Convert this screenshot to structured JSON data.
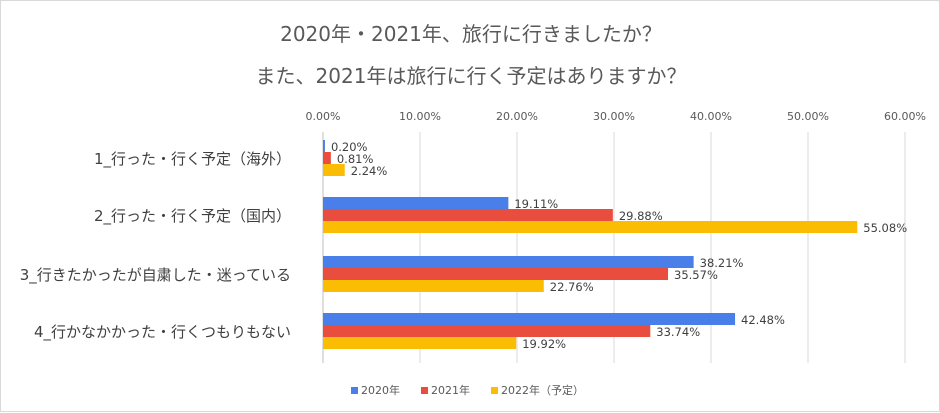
{
  "chart_data": {
    "type": "bar",
    "orientation": "horizontal",
    "title_lines": [
      "2020年・2021年、旅行に行きましたか？",
      "また、2021年は旅行に行く予定はありますか？"
    ],
    "categories": [
      "1_行った・行く予定（海外）",
      "2_行った・行く予定（国内）",
      "3_行きたかったが自粛した・迷っている",
      "4_行かなかかった・行くつもりもない"
    ],
    "series": [
      {
        "name": "2020年",
        "color": "#4a7fe9",
        "values": [
          0.2,
          19.11,
          38.21,
          42.48
        ],
        "labels": [
          "0.20%",
          "19.11%",
          "38.21%",
          "42.48%"
        ]
      },
      {
        "name": "2021年",
        "color": "#e84d3d",
        "values": [
          0.81,
          29.88,
          35.57,
          33.74
        ],
        "labels": [
          "0.81%",
          "29.88%",
          "35.57%",
          "33.74%"
        ]
      },
      {
        "name": "2022年（予定）",
        "color": "#fbbc04",
        "values": [
          2.24,
          55.08,
          22.76,
          19.92
        ],
        "labels": [
          "2.24%",
          "55.08%",
          "22.76%",
          "19.92%"
        ]
      }
    ],
    "xlim": [
      0,
      60
    ],
    "ticks": [
      0,
      10,
      20,
      30,
      40,
      50,
      60
    ],
    "tick_labels": [
      "0.00%",
      "10.00%",
      "20.00%",
      "30.00%",
      "40.00%",
      "50.00%",
      "60.00%"
    ],
    "axis_position": "top",
    "legend_position": "bottom",
    "grid": true
  }
}
